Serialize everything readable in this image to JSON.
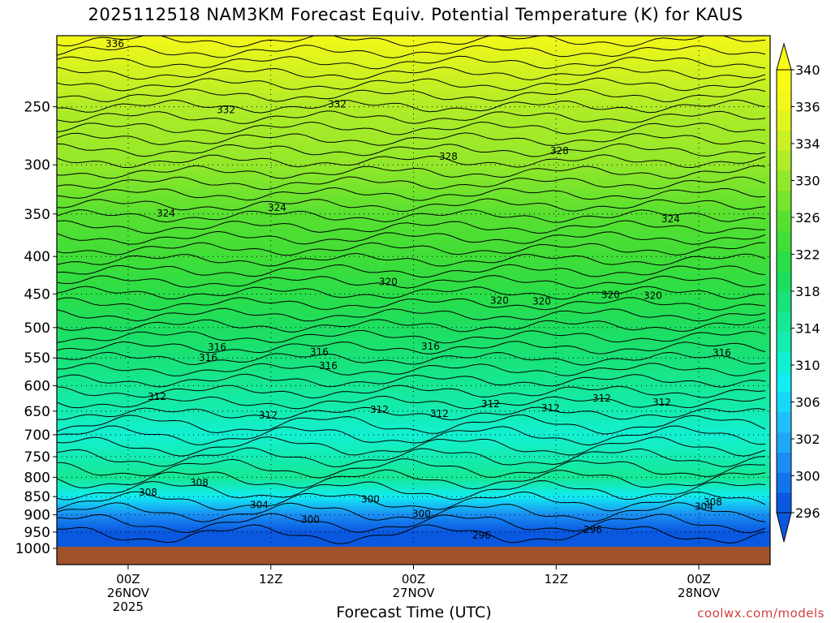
{
  "title": "2025112518 NAM3KM Forecast Equiv. Potential Temperature (K) for KAUS",
  "credit": "coolwx.com/models",
  "chart_data": {
    "type": "heatmap",
    "title": "2025112518 NAM3KM Forecast Equiv. Potential Temperature (K) for KAUS",
    "xlabel": "Forecast Time (UTC)",
    "ylabel": "",
    "x_ticks": [
      {
        "hour": 6,
        "lines": [
          "00Z",
          "26NOV",
          "2025"
        ]
      },
      {
        "hour": 18,
        "lines": [
          "12Z"
        ]
      },
      {
        "hour": 30,
        "lines": [
          "00Z",
          "27NOV"
        ]
      },
      {
        "hour": 42,
        "lines": [
          "12Z"
        ]
      },
      {
        "hour": 54,
        "lines": [
          "00Z",
          "28NOV"
        ]
      }
    ],
    "xlim": [
      0,
      60
    ],
    "y_ticks": [
      250,
      300,
      350,
      400,
      450,
      500,
      550,
      600,
      650,
      700,
      750,
      800,
      850,
      900,
      950,
      1000
    ],
    "ylim": [
      1020,
      200
    ],
    "colorbar": {
      "levels": [
        296,
        298,
        300,
        302,
        304,
        306,
        308,
        310,
        312,
        314,
        316,
        318,
        320,
        322,
        324,
        326,
        328,
        330,
        332,
        334,
        336,
        338,
        340
      ],
      "tick_labels": [
        "296",
        "300",
        "302",
        "306",
        "310",
        "314",
        "318",
        "322",
        "326",
        "330",
        "334",
        "336",
        "340"
      ],
      "colors": [
        "#0a58e0",
        "#1274ea",
        "#1a8ef2",
        "#20a8f8",
        "#1ec0fa",
        "#18d8fa",
        "#12ecf2",
        "#12f0d2",
        "#14ecb2",
        "#16e894",
        "#18e278",
        "#1ede60",
        "#2ade48",
        "#40de38",
        "#58e030",
        "#74e42c",
        "#92e82a",
        "#b0ec28",
        "#ccf024",
        "#e2f41e",
        "#f4f818",
        "#fcfc12"
      ]
    },
    "contour_labels": [
      336,
      332,
      332,
      328,
      328,
      324,
      324,
      324,
      320,
      320,
      320,
      316,
      316,
      316,
      312,
      312,
      312,
      312,
      312,
      312,
      312,
      312,
      308,
      316,
      316,
      316,
      320,
      320,
      308,
      304,
      300,
      296,
      296,
      304,
      308,
      300,
      300
    ],
    "profile_theta_by_pressure": [
      {
        "p": 200,
        "theta": 337
      },
      {
        "p": 250,
        "theta": 331
      },
      {
        "p": 300,
        "theta": 328
      },
      {
        "p": 350,
        "theta": 325
      },
      {
        "p": 400,
        "theta": 323
      },
      {
        "p": 450,
        "theta": 321
      },
      {
        "p": 500,
        "theta": 319
      },
      {
        "p": 550,
        "theta": 317
      },
      {
        "p": 600,
        "theta": 315
      },
      {
        "p": 650,
        "theta": 313
      },
      {
        "p": 700,
        "theta": 311
      },
      {
        "p": 750,
        "theta": 313
      },
      {
        "p": 800,
        "theta": 315
      },
      {
        "p": 850,
        "theta": 309
      },
      {
        "p": 900,
        "theta": 300
      },
      {
        "p": 950,
        "theta": 297
      },
      {
        "p": 1000,
        "theta": 297
      }
    ]
  }
}
